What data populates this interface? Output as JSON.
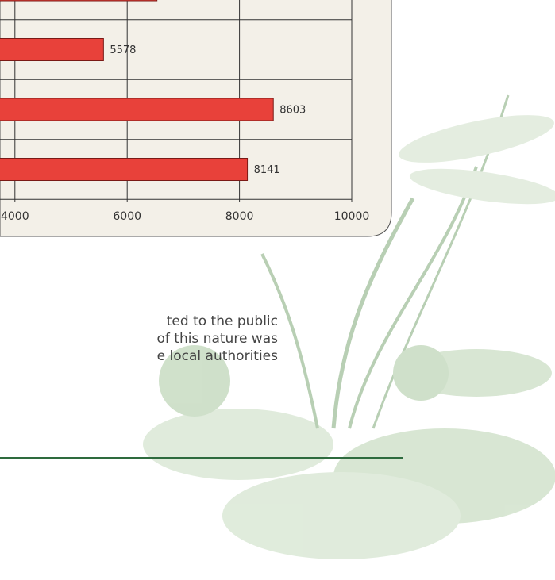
{
  "chart_data": {
    "type": "bar",
    "orientation": "horizontal",
    "values": [
      6530,
      5578,
      8603,
      8141
    ],
    "color": "#e8413a",
    "xlim": [
      0,
      10000
    ],
    "xticks": [
      4000,
      6000,
      8000,
      10000
    ],
    "grid": true
  },
  "text": {
    "lines": [
      "ted to the public",
      "of this nature was",
      "e local authorities"
    ]
  }
}
